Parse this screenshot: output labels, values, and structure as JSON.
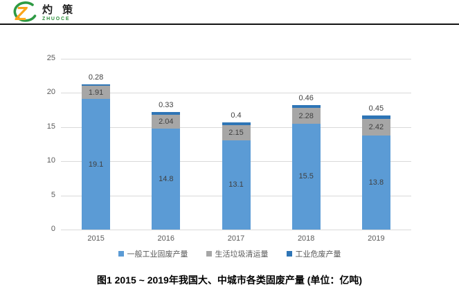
{
  "logo": {
    "cn": "灼 策",
    "en": "ZHUOCE"
  },
  "chart_data": {
    "type": "bar",
    "stacked": true,
    "categories": [
      "2015",
      "2016",
      "2017",
      "2018",
      "2019"
    ],
    "series": [
      {
        "name": "一般工业固废产量",
        "color": "#5B9BD5",
        "values": [
          19.1,
          14.8,
          13.1,
          15.5,
          13.8
        ],
        "labels": [
          "19.1",
          "14.8",
          "13.1",
          "15.5",
          "13.8"
        ]
      },
      {
        "name": "生活垃圾清运量",
        "color": "#A6A6A6",
        "values": [
          1.91,
          2.04,
          2.15,
          2.28,
          2.42
        ],
        "labels": [
          "1.91",
          "2.04",
          "2.15",
          "2.28",
          "2.42"
        ]
      },
      {
        "name": "工业危废产量",
        "color": "#2E75B6",
        "values": [
          0.28,
          0.33,
          0.4,
          0.46,
          0.45
        ],
        "labels": [
          "0.28",
          "0.33",
          "0.4",
          "0.46",
          "0.45"
        ]
      }
    ],
    "y_ticks": [
      0,
      5,
      10,
      15,
      20,
      25
    ],
    "ylim": [
      0,
      25
    ],
    "grid": true,
    "legend_position": "bottom",
    "title": ""
  },
  "caption": "图1   2015 ~ 2019年我国大、中城市各类固废产量 (单位：亿吨)",
  "colors": {
    "gridline": "#D9D9D9",
    "axis_text": "#595959",
    "data_label": "#3f3f3f",
    "header_rule": "#121212",
    "logo_green": "#2E9A44",
    "logo_orange": "#F7941E",
    "logo_yellow": "#FDB515"
  }
}
